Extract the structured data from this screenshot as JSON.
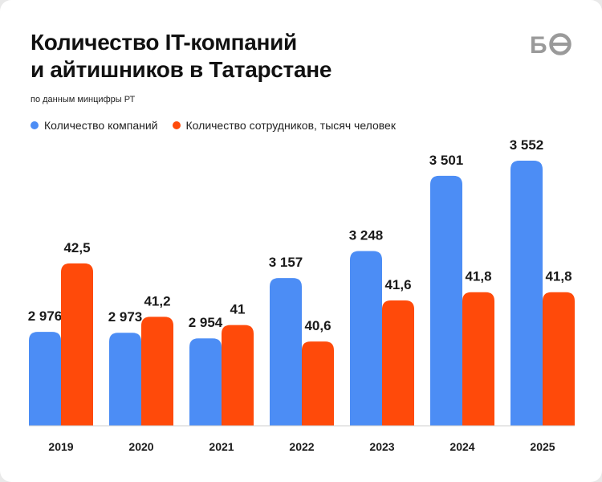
{
  "chart_data": {
    "type": "bar",
    "title": "Количество IT-компаний и айтишников в Татарстане",
    "title_lines": [
      "Количество IT-компаний",
      "и айтишников в Татарстане"
    ],
    "subtitle": "по данным минцифры РТ",
    "categories": [
      "2019",
      "2020",
      "2021",
      "2022",
      "2023",
      "2024",
      "2025"
    ],
    "series": [
      {
        "name": "Количество компаний",
        "color": "#4c8df5",
        "values": [
          2976,
          2973,
          2954,
          3157,
          3248,
          3501,
          3552
        ],
        "labels": [
          "2 976",
          "2 973",
          "2 954",
          "3 157",
          "3 248",
          "3 501",
          "3 552"
        ],
        "scale_min": 2660,
        "scale_max": 3552
      },
      {
        "name": "Количество сотрудников, тысяч человек",
        "color": "#ff4a0a",
        "values": [
          42.5,
          41.2,
          41,
          40.6,
          41.6,
          41.8,
          41.8
        ],
        "labels": [
          "42,5",
          "41,2",
          "41",
          "40,6",
          "41,6",
          "41,8",
          "41,8"
        ],
        "scale_min": 38.55,
        "scale_max": 45.0
      }
    ],
    "legend_position": "top-left",
    "grid": false,
    "xlabel": "",
    "ylabel": ""
  },
  "logo": {
    "text": "БО",
    "color": "#9a9a9a"
  },
  "colors": {
    "background": "#ffffff",
    "baseline": "#cfcfcf"
  }
}
